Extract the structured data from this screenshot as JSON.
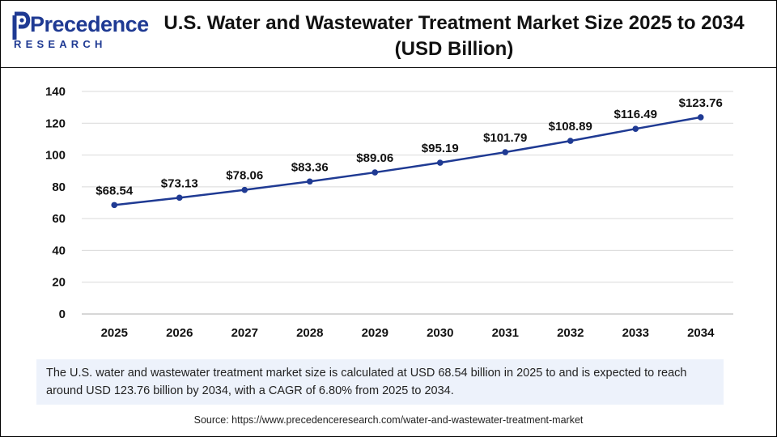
{
  "brand": {
    "name": "Precedence",
    "tagline": "RESEARCH"
  },
  "title": {
    "line1": "U.S. Water and Wastewater Treatment Market Size 2025 to 2034",
    "line2": "(USD Billion)"
  },
  "chart_data": {
    "type": "line",
    "title": "U.S. Water and Wastewater Treatment Market Size 2025 to 2034 (USD Billion)",
    "categories": [
      "2025",
      "2026",
      "2027",
      "2028",
      "2029",
      "2030",
      "2031",
      "2032",
      "2033",
      "2034"
    ],
    "series": [
      {
        "name": "Market Size",
        "values": [
          68.54,
          73.13,
          78.06,
          83.36,
          89.06,
          95.19,
          101.79,
          108.89,
          116.49,
          123.76
        ],
        "labels": [
          "$68.54",
          "$73.13",
          "$78.06",
          "$83.36",
          "$89.06",
          "$95.19",
          "$101.79",
          "$108.89",
          "$116.49",
          "$123.76"
        ],
        "color": "#1f3a93"
      }
    ],
    "yticks": [
      "0",
      "20",
      "40",
      "60",
      "80",
      "100",
      "120",
      "140"
    ],
    "ylim": [
      0,
      140
    ],
    "xlabel": "",
    "ylabel": "",
    "grid": true
  },
  "description": "The U.S. water and wastewater treatment market size is calculated at USD 68.54 billion in 2025 to and is expected to reach around USD 123.76 billion by 2034, with a CAGR of 6.80% from 2025 to 2034.",
  "source": "Source: https://www.precedenceresearch.com/water-and-wastewater-treatment-market"
}
